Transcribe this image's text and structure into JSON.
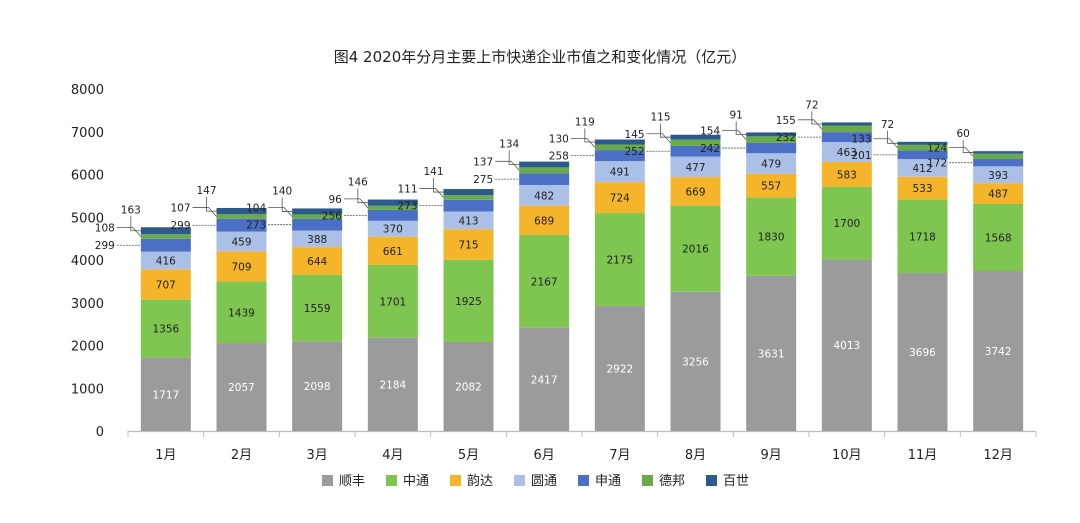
{
  "chart_data": {
    "type": "bar",
    "stacked": true,
    "title": "图4 2020年分月主要上市快递企业市值之和变化情况（亿元）",
    "categories": [
      "1月",
      "2月",
      "3月",
      "4月",
      "5月",
      "6月",
      "7月",
      "8月",
      "9月",
      "10月",
      "11月",
      "12月"
    ],
    "ylim": [
      0,
      8000
    ],
    "yticks": [
      0,
      1000,
      2000,
      3000,
      4000,
      5000,
      6000,
      7000,
      8000
    ],
    "grid": false,
    "legend_position": "bottom",
    "series": [
      {
        "name": "顺丰",
        "color": "#9b9b9b",
        "values": [
          1717,
          2057,
          2098,
          2184,
          2082,
          2417,
          2922,
          3256,
          3631,
          4013,
          3696,
          3742
        ]
      },
      {
        "name": "中通",
        "color": "#7fc650",
        "values": [
          1356,
          1439,
          1559,
          1701,
          1925,
          2167,
          2175,
          2016,
          1830,
          1700,
          1718,
          1568
        ]
      },
      {
        "name": "韵达",
        "color": "#f5b52a",
        "values": [
          707,
          709,
          644,
          661,
          715,
          689,
          724,
          669,
          557,
          583,
          533,
          487
        ]
      },
      {
        "name": "圆通",
        "color": "#aac0e6",
        "values": [
          416,
          459,
          388,
          370,
          413,
          482,
          491,
          477,
          479,
          463,
          412,
          393
        ]
      },
      {
        "name": "申通",
        "color": "#4a6fc4",
        "values": [
          299,
          299,
          273,
          256,
          273,
          275,
          258,
          252,
          242,
          232,
          201,
          172
        ]
      },
      {
        "name": "德邦",
        "color": "#6aaa48",
        "values": [
          108,
          107,
          104,
          96,
          111,
          137,
          130,
          145,
          154,
          155,
          133,
          124
        ]
      },
      {
        "name": "百世",
        "color": "#2d5a8c",
        "values": [
          163,
          147,
          140,
          146,
          141,
          134,
          119,
          115,
          91,
          72,
          72,
          60
        ]
      }
    ]
  }
}
